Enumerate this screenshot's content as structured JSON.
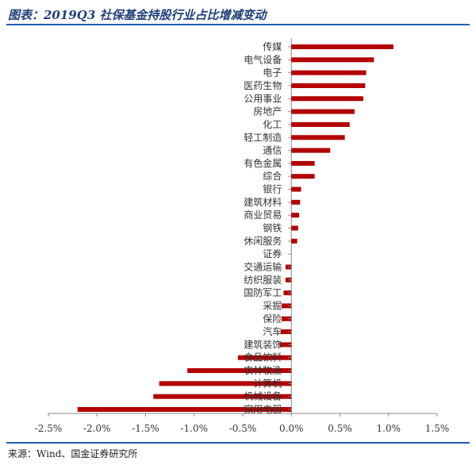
{
  "title": "图表：2019Q3 社保基金持股行业占比增减变动",
  "source": "来源：Wind、国金证券研究所",
  "colors": {
    "bar": "#b30000",
    "rule": "#1f5fb0",
    "axis": "#888888"
  },
  "chart_data": {
    "type": "bar",
    "orientation": "horizontal",
    "title": "图表：2019Q3 社保基金持股行业占比增减变动",
    "xlim": [
      -2.5,
      1.5
    ],
    "xticks": [
      -2.5,
      -2.0,
      -1.5,
      -1.0,
      -0.5,
      0.0,
      0.5,
      1.0,
      1.5
    ],
    "tick_labels": [
      "-2.5%",
      "-2.0%",
      "-1.5%",
      "-1.0%",
      "-0.5%",
      "0.0%",
      "0.5%",
      "1.0%",
      "1.5%"
    ],
    "categories": [
      "传媒",
      "电气设备",
      "电子",
      "医药生物",
      "公用事业",
      "房地产",
      "化工",
      "轻工制造",
      "通信",
      "有色金属",
      "综合",
      "银行",
      "建筑材料",
      "商业贸易",
      "钢铁",
      "休闲服务",
      "证券",
      "交通运输",
      "纺织服装",
      "国防军工",
      "采掘",
      "保险",
      "汽车",
      "建筑装饰",
      "食品饮料",
      "农林牧渔",
      "计算机",
      "机械设备",
      "家用电器"
    ],
    "values": [
      1.05,
      0.85,
      0.77,
      0.76,
      0.74,
      0.65,
      0.6,
      0.55,
      0.4,
      0.24,
      0.24,
      0.1,
      0.09,
      0.08,
      0.07,
      0.06,
      0.0,
      -0.06,
      -0.06,
      -0.08,
      -0.1,
      -0.1,
      -0.11,
      -0.12,
      -0.55,
      -1.07,
      -1.36,
      -1.42,
      -2.2
    ]
  }
}
